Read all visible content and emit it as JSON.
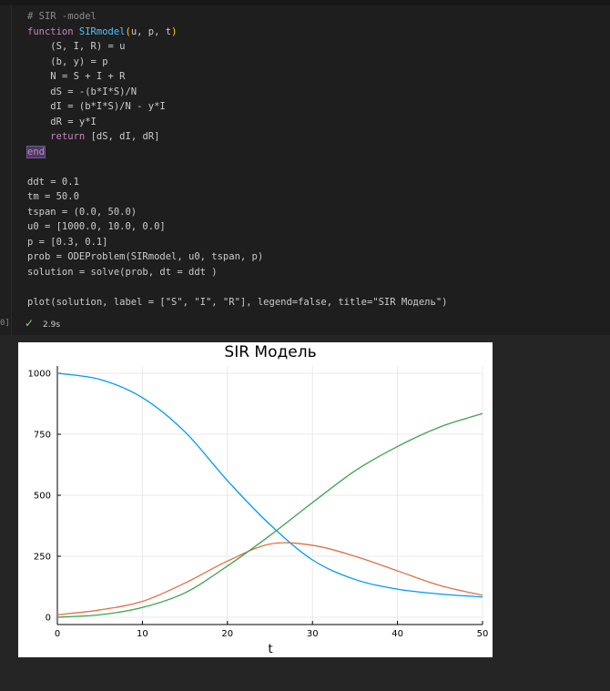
{
  "cell": {
    "line_comment": "# SIR -model",
    "kw_function": "function",
    "fn_name": "SIRmodel",
    "fn_args": "u, p, t",
    "line_unpack1": "(S, I, R) = u",
    "line_unpack2": "(b, y) = p",
    "line_N": "N = S + I + R",
    "line_dS": "dS = -(b*I*S)/N",
    "line_dI": "dI = (b*I*S)/N - y*I",
    "line_dR": "dR = y*I",
    "kw_return": "return",
    "return_vals": "[dS, dI, dR]",
    "kw_end": "end",
    "line_ddt": "ddt = 0.1",
    "line_tm": "tm = 50.0",
    "line_tspan": "tspan = (0.0, 50.0)",
    "line_u0": "u0 = [1000.0, 10.0, 0.0]",
    "line_p": "p = [0.3, 0.1]",
    "line_prob": "prob = ODEProblem(SIRmodel, u0, tspan, p)",
    "line_solution": "solution = solve(prob, dt = ddt )",
    "line_plot": "plot(solution, label = [\"S\", \"I\", \"R\"], legend=false, title=\"SIR Модель\")",
    "exec_count": "0]",
    "exec_time": "2.9s"
  },
  "chart_data": {
    "type": "line",
    "title": "SIR Модель",
    "xlabel": "t",
    "ylabel": "",
    "xlim": [
      0,
      50
    ],
    "ylim": [
      -30,
      1030
    ],
    "xticks": [
      0,
      10,
      20,
      30,
      40,
      50
    ],
    "yticks": [
      0,
      250,
      500,
      750,
      1000
    ],
    "legend": false,
    "grid": true,
    "series": [
      {
        "color": "#009af9",
        "x": [
          0,
          5,
          10,
          15,
          20,
          25,
          30,
          35,
          40,
          45,
          50
        ],
        "y": [
          1000,
          975,
          900,
          760,
          560,
          380,
          235,
          155,
          115,
          95,
          83
        ]
      },
      {
        "color": "#e26f46",
        "x": [
          0,
          5,
          10,
          15,
          20,
          25,
          30,
          35,
          40,
          45,
          50
        ],
        "y": [
          10,
          30,
          65,
          140,
          230,
          300,
          295,
          250,
          190,
          130,
          90
        ]
      },
      {
        "color": "#3da44d",
        "x": [
          0,
          5,
          10,
          15,
          20,
          25,
          30,
          35,
          40,
          45,
          50
        ],
        "y": [
          0,
          10,
          40,
          100,
          210,
          335,
          470,
          600,
          700,
          780,
          835
        ]
      }
    ]
  }
}
